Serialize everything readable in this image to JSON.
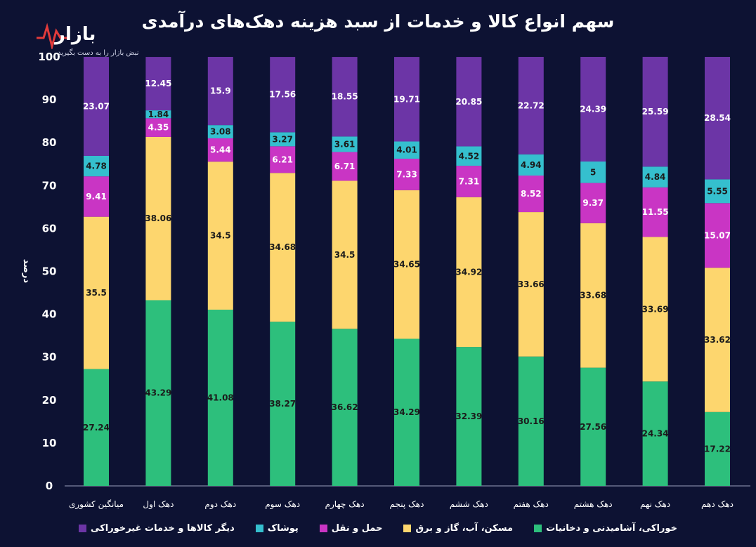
{
  "title": "سهم انواع کالا و خدمات از سبد هزینه دهک‌های درآمدی",
  "logo": {
    "text": "بازار",
    "tagline": "نبض بازار را به دست بگیرید"
  },
  "chart_data": {
    "type": "bar",
    "stacked": true,
    "title": "سهم انواع کالا و خدمات از سبد هزینه دهک‌های درآمدی",
    "xlabel": "",
    "ylabel": "درصد",
    "ylim": [
      0,
      100
    ],
    "yticks": [
      0,
      10,
      20,
      30,
      40,
      50,
      60,
      70,
      80,
      90,
      100
    ],
    "categories": [
      "میانگین کشوری",
      "دهک اول",
      "دهک دوم",
      "دهک سوم",
      "دهک چهارم",
      "دهک پنجم",
      "دهک ششم",
      "دهک هفتم",
      "دهک هشتم",
      "دهک نهم",
      "دهک دهم"
    ],
    "series": [
      {
        "name": "خوراکی، آشامیدنی و دخانیات",
        "color": "#2dbf7c",
        "values": [
          27.24,
          43.29,
          41.08,
          38.27,
          36.62,
          34.29,
          32.39,
          30.16,
          27.56,
          24.34,
          17.22
        ]
      },
      {
        "name": "مسکن، آب، گاز و برق",
        "color": "#fdd66e",
        "values": [
          35.5,
          38.06,
          34.5,
          34.68,
          34.5,
          34.65,
          34.92,
          33.66,
          33.68,
          33.69,
          33.62
        ]
      },
      {
        "name": "حمل و نقل",
        "color": "#c935c4",
        "values": [
          9.41,
          4.35,
          5.44,
          6.21,
          6.71,
          7.33,
          7.31,
          8.52,
          9.37,
          11.55,
          15.07
        ]
      },
      {
        "name": "پوشاک",
        "color": "#35bfce",
        "values": [
          4.78,
          1.84,
          3.08,
          3.27,
          3.61,
          4.01,
          4.52,
          4.94,
          5,
          4.84,
          5.55
        ]
      },
      {
        "name": "دیگر کالاها و خدمات غیرخوراکی",
        "color": "#6c35a6",
        "values": [
          23.07,
          12.45,
          15.9,
          17.56,
          18.55,
          19.71,
          20.85,
          22.72,
          24.39,
          25.59,
          28.54
        ]
      }
    ],
    "legend": "bottom"
  }
}
